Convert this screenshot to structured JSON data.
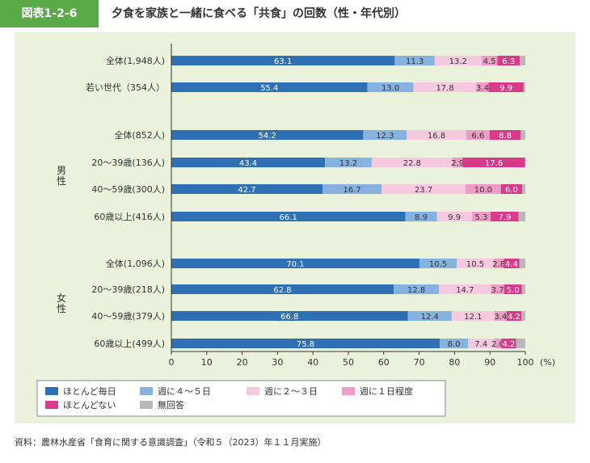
{
  "figure": {
    "tag": "図表1-2-6",
    "title": "夕食を家族と一緒に食べる「共食」の回数（性・年代別）",
    "source": "資料：農林水産省「食育に関する意識調査」（令和５（2023）年１１月実施）"
  },
  "colors": {
    "ほとんど毎日": "#2f6fb3",
    "週に４～５日": "#86b2df",
    "週に２～３日": "#f6c9e0",
    "週に１日程度": "#ee9cc6",
    "ほとんどない": "#d8398a",
    "無回答": "#b8b8b8",
    "panel_background": "#eaf2dc",
    "tag_background": "#5aaa4a"
  },
  "chart_data": {
    "type": "bar",
    "orientation": "horizontal",
    "stacked": true,
    "title": "夕食を家族と一緒に食べる「共食」の回数（性・年代別）",
    "xlabel": "(%)",
    "xlim": [
      0,
      100
    ],
    "xticks": [
      0,
      10,
      20,
      30,
      40,
      50,
      60,
      70,
      80,
      90,
      100
    ],
    "grid": false,
    "legend_position": "bottom",
    "groups": [
      {
        "label": "",
        "rows": [
          0,
          1
        ]
      },
      {
        "label": "男性",
        "rows": [
          2,
          3,
          4,
          5
        ]
      },
      {
        "label": "女性",
        "rows": [
          6,
          7,
          8,
          9
        ]
      }
    ],
    "categories": [
      "全体(1,948人)",
      "若い世代（354人）",
      "全体(852人)",
      "20～39歳(136人)",
      "40～59歳(300人)",
      "60歳以上(416人)",
      "全体(1,096人)",
      "20～39歳(218人)",
      "40～59歳(379人)",
      "60歳以上(499人)"
    ],
    "series": [
      {
        "name": "ほとんど毎日",
        "values": [
          63.1,
          55.4,
          54.2,
          43.4,
          42.7,
          66.1,
          70.1,
          62.8,
          66.8,
          75.8
        ]
      },
      {
        "name": "週に４～５日",
        "values": [
          11.3,
          13.0,
          12.3,
          13.2,
          16.7,
          8.9,
          10.5,
          12.8,
          12.4,
          8.0
        ]
      },
      {
        "name": "週に２～３日",
        "values": [
          13.2,
          17.8,
          16.8,
          22.8,
          23.7,
          9.9,
          10.5,
          14.7,
          12.1,
          7.4
        ]
      },
      {
        "name": "週に１日程度",
        "values": [
          4.5,
          3.4,
          6.6,
          2.9,
          10.0,
          5.3,
          2.8,
          3.7,
          3.4,
          2.0
        ]
      },
      {
        "name": "ほとんどない",
        "values": [
          6.3,
          9.9,
          8.8,
          17.6,
          6.0,
          7.9,
          4.4,
          5.0,
          4.2,
          4.2
        ]
      },
      {
        "name": "無回答",
        "values": [
          1.6,
          0.5,
          1.3,
          0.1,
          0.9,
          1.9,
          1.7,
          1.0,
          1.1,
          2.6
        ]
      }
    ],
    "labeled_series": [
      "ほとんど毎日",
      "週に４～５日",
      "週に２～３日",
      "週に１日程度",
      "ほとんどない"
    ],
    "legend": [
      "ほとんど毎日",
      "週に４～５日",
      "週に２～３日",
      "週に１日程度",
      "ほとんどない",
      "無回答"
    ]
  }
}
